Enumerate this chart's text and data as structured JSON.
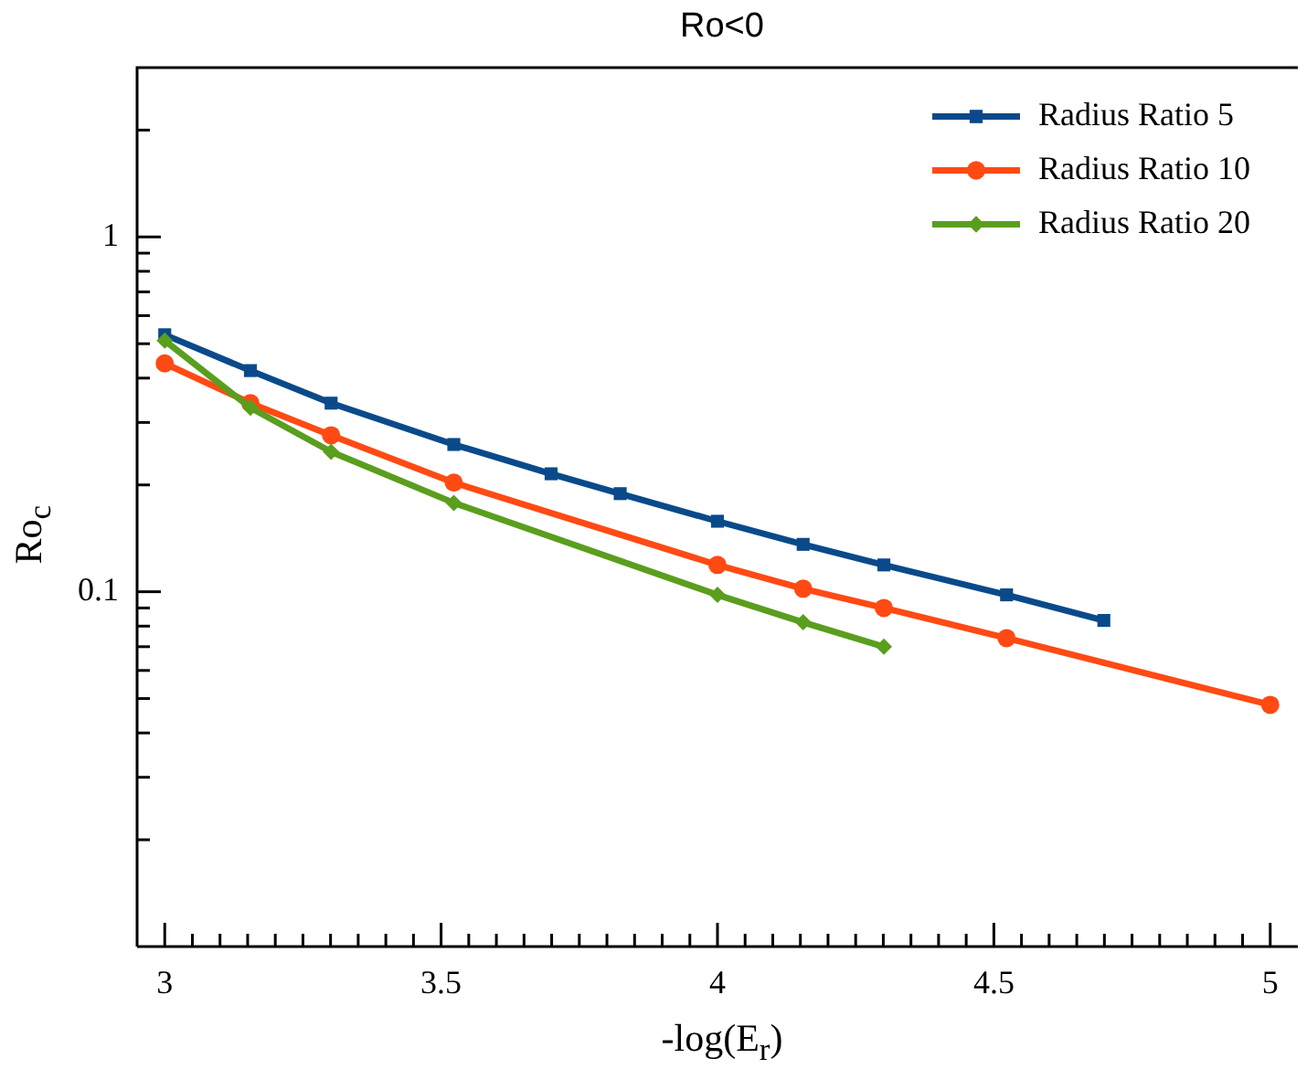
{
  "chart_data": {
    "type": "line",
    "title": "Ro<0",
    "xlabel": "-log(E$_{r}$)",
    "ylabel": "Ro$_{c}$",
    "log": "y",
    "legend": "top right",
    "line_style": "solid",
    "grid": false,
    "xlim": [
      2.95,
      5.05
    ],
    "ylim": [
      0.01,
      3
    ],
    "xticks": [
      3,
      {
        "value": 3.05,
        "label": null
      },
      {
        "value": 3.1,
        "label": null
      },
      {
        "value": 3.15,
        "label": null
      },
      {
        "value": 3.2,
        "label": null
      },
      {
        "value": 3.25,
        "label": null
      },
      {
        "value": 3.3,
        "label": null
      },
      {
        "value": 3.35,
        "label": null
      },
      {
        "value": 3.4,
        "label": null
      },
      {
        "value": 3.45,
        "label": null
      },
      3.5,
      {
        "value": 3.55,
        "label": null
      },
      {
        "value": 3.6,
        "label": null
      },
      {
        "value": 3.65,
        "label": null
      },
      {
        "value": 3.7,
        "label": null
      },
      {
        "value": 3.75,
        "label": null
      },
      {
        "value": 3.8,
        "label": null
      },
      {
        "value": 3.85,
        "label": null
      },
      {
        "value": 3.9,
        "label": null
      },
      {
        "value": 3.95,
        "label": null
      },
      4,
      {
        "value": 4.05,
        "label": null
      },
      {
        "value": 4.1,
        "label": null
      },
      {
        "value": 4.15,
        "label": null
      },
      {
        "value": 4.2,
        "label": null
      },
      {
        "value": 4.25,
        "label": null
      },
      {
        "value": 4.3,
        "label": null
      },
      {
        "value": 4.35,
        "label": null
      },
      {
        "value": 4.4,
        "label": null
      },
      {
        "value": 4.45,
        "label": null
      },
      4.5,
      {
        "value": 4.55,
        "label": null
      },
      {
        "value": 4.6,
        "label": null
      },
      {
        "value": 4.65,
        "label": null
      },
      {
        "value": 4.7,
        "label": null
      },
      {
        "value": 4.75,
        "label": null
      },
      {
        "value": 4.8,
        "label": null
      },
      {
        "value": 4.85,
        "label": null
      },
      {
        "value": 4.9,
        "label": null
      },
      {
        "value": 4.95,
        "label": null
      },
      5
    ],
    "yticks": [
      {
        "value": 0.02,
        "label": null
      },
      {
        "value": 0.03,
        "label": null
      },
      {
        "value": 0.04,
        "label": null
      },
      {
        "value": 0.05,
        "label": null
      },
      {
        "value": 0.06,
        "label": null
      },
      {
        "value": 0.07,
        "label": null
      },
      {
        "value": 0.08,
        "label": null
      },
      {
        "value": 0.09,
        "label": null
      },
      0.1,
      {
        "value": 0.2,
        "label": null
      },
      {
        "value": 0.3,
        "label": null
      },
      {
        "value": 0.4,
        "label": null
      },
      {
        "value": 0.5,
        "label": null
      },
      {
        "value": 0.6,
        "label": null
      },
      {
        "value": 0.7,
        "label": null
      },
      {
        "value": 0.8,
        "label": null
      },
      {
        "value": 0.9,
        "label": null
      },
      1,
      {
        "value": 2,
        "label": null
      }
    ],
    "series": [
      {
        "name": "Radius Ratio 5",
        "marker": "square",
        "color": "#0a4a8a",
        "x": [
          3,
          3.155,
          3.301,
          3.523,
          3.699,
          3.824,
          4,
          4.155,
          4.301,
          4.523,
          4.699
        ],
        "values": [
          0.53,
          0.42,
          0.34,
          0.26,
          0.215,
          0.189,
          0.158,
          0.136,
          0.119,
          0.098,
          0.083
        ]
      },
      {
        "name": "Radius Ratio 10",
        "marker": "circle",
        "color": "#ff4a14",
        "x": [
          3,
          3.155,
          3.301,
          3.523,
          4,
          4.155,
          4.301,
          4.523,
          5
        ],
        "values": [
          0.44,
          0.34,
          0.276,
          0.203,
          0.119,
          0.102,
          0.09,
          0.074,
          0.048
        ]
      },
      {
        "name": "Radius Ratio 20",
        "marker": "diamond",
        "color": "#5a9e1e",
        "x": [
          3,
          3.155,
          3.301,
          3.523,
          4,
          4.155,
          4.301
        ],
        "values": [
          0.51,
          0.33,
          0.248,
          0.178,
          0.098,
          0.082,
          0.07
        ]
      }
    ]
  }
}
